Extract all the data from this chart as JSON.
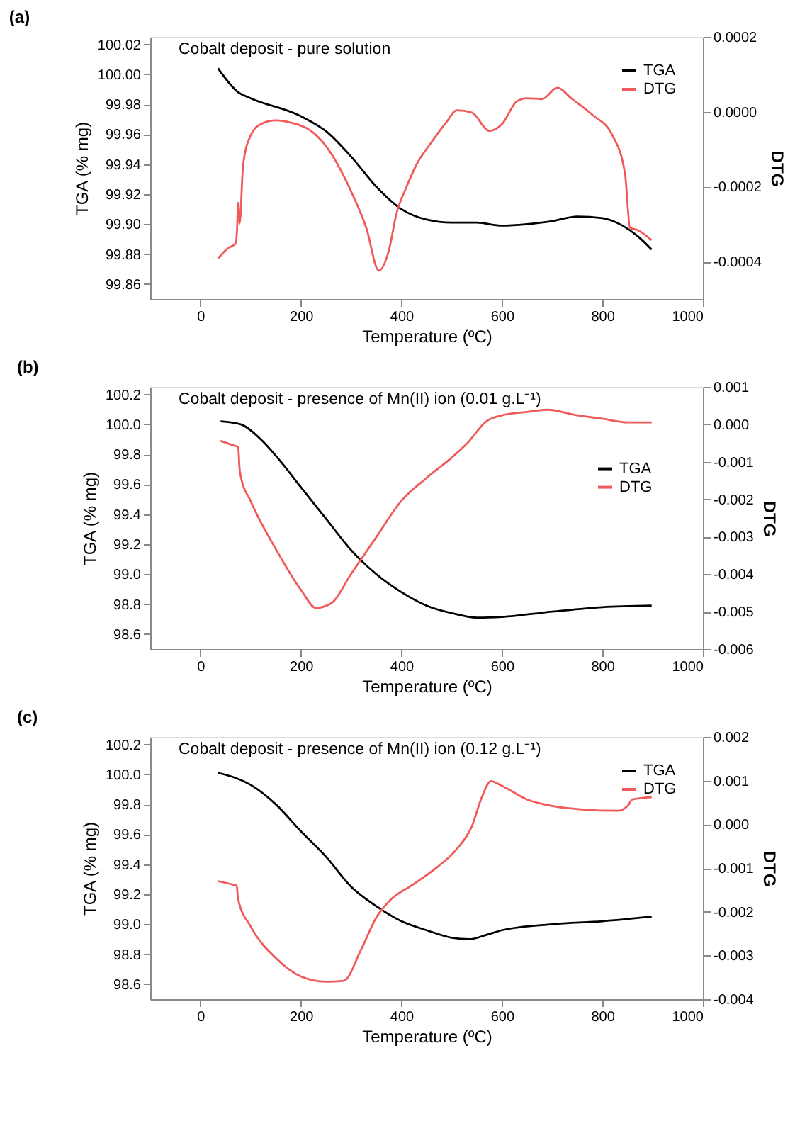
{
  "chart_data": [
    {
      "type": "line",
      "title": "(a)",
      "annotations": [
        "Cobalt deposit - pure solution"
      ],
      "xlabel": "Temperature (ºC)",
      "ylabel": "TGA (% mg)",
      "y2label": "DTG",
      "legend": "top right",
      "grid": false,
      "xlim": [
        -100,
        1000
      ],
      "xticks": [
        0,
        200,
        400,
        600,
        800,
        1000
      ],
      "ylim": [
        99.85,
        100.025
      ],
      "yticks": [
        {
          "value": 99.86,
          "label": "99.86"
        },
        {
          "value": 99.88,
          "label": "99.88"
        },
        {
          "value": 99.9,
          "label": "99.90"
        },
        {
          "value": 99.92,
          "label": "99.92"
        },
        {
          "value": 99.94,
          "label": "99.94"
        },
        {
          "value": 99.96,
          "label": "99.96"
        },
        {
          "value": 99.98,
          "label": "99.98"
        },
        {
          "value": 100.0,
          "label": "100.00"
        },
        {
          "value": 100.02,
          "label": "100.02"
        }
      ],
      "y2lim": [
        -0.0005,
        0.0002
      ],
      "y2ticks": [
        {
          "value": -0.0004,
          "label": "-0.0004"
        },
        {
          "value": -0.0002,
          "label": "-0.0002"
        },
        {
          "value": 0,
          "label": "0.0000"
        },
        {
          "value": 0.0002,
          "label": "0.0002"
        }
      ],
      "series": [
        {
          "name": "TGA",
          "color": "#000000",
          "x": [
            35,
            75,
            100,
            200,
            250,
            300,
            350,
            400,
            450,
            500,
            550,
            600,
            650,
            700,
            750,
            800,
            840,
            870,
            898
          ],
          "values": [
            100.004,
            99.988,
            99.984,
            99.972,
            99.962,
            99.945,
            99.925,
            99.91,
            99.903,
            99.901,
            99.901,
            99.899,
            99.9,
            99.902,
            99.905,
            99.904,
            99.899,
            99.892,
            99.883
          ]
        },
        {
          "name": "DTG",
          "color": "#f05a5a",
          "axis": "y2",
          "x": [
            35,
            55,
            70,
            73,
            75,
            78,
            85,
            100,
            120,
            150,
            180,
            220,
            250,
            300,
            330,
            355,
            375,
            390,
            410,
            430,
            460,
            490,
            510,
            540,
            575,
            600,
            630,
            650,
            680,
            710,
            740,
            780,
            820,
            845,
            855,
            870,
            898
          ],
          "values": [
            -0.000392,
            -0.000364,
            -0.000352,
            -0.00031,
            -0.000243,
            -0.000298,
            -0.000141,
            -6.3e-05,
            -3.3e-05,
            -2.3e-05,
            -2.9e-05,
            -5.1e-05,
            -9.2e-05,
            -0.000213,
            -0.00031,
            -0.000424,
            -0.00037,
            -0.000273,
            -0.000201,
            -0.000141,
            -8.1e-05,
            -2.7e-05,
            4e-06,
            -2e-06,
            -5.1e-05,
            -3.3e-05,
            2.8e-05,
            3.6e-05,
            3.4e-05,
            6.4e-05,
            3.4e-05,
            -8e-06,
            -6.3e-05,
            -0.000165,
            -0.00031,
            -0.000316,
            -0.000343
          ]
        }
      ]
    },
    {
      "type": "line",
      "title": "(b)",
      "annotations": [
        "Cobalt deposit - presence of Mn(II) ion (0.01 g.L⁻¹)"
      ],
      "xlabel": "Temperature (ºC)",
      "ylabel": "TGA (% mg)",
      "y2label": "DTG",
      "legend": "right",
      "grid": false,
      "xlim": [
        -100,
        1000
      ],
      "xticks": [
        0,
        200,
        400,
        600,
        800,
        1000
      ],
      "ylim": [
        98.5,
        100.25
      ],
      "yticks": [
        {
          "value": 98.6,
          "label": "98.6"
        },
        {
          "value": 98.8,
          "label": "98.8"
        },
        {
          "value": 99.0,
          "label": "99.0"
        },
        {
          "value": 99.2,
          "label": "99.2"
        },
        {
          "value": 99.4,
          "label": "99.4"
        },
        {
          "value": 99.6,
          "label": "99.6"
        },
        {
          "value": 99.8,
          "label": "99.8"
        },
        {
          "value": 100.0,
          "label": "100.0"
        },
        {
          "value": 100.2,
          "label": "100.2"
        }
      ],
      "y2lim": [
        -0.006,
        0.001
      ],
      "y2ticks": [
        {
          "value": -0.006,
          "label": "-0.006"
        },
        {
          "value": -0.005,
          "label": "-0.005"
        },
        {
          "value": -0.004,
          "label": "-0.004"
        },
        {
          "value": -0.003,
          "label": "-0.003"
        },
        {
          "value": -0.002,
          "label": "-0.002"
        },
        {
          "value": -0.001,
          "label": "-0.001"
        },
        {
          "value": 0,
          "label": "0.000"
        },
        {
          "value": 0.001,
          "label": "0.001"
        }
      ],
      "series": [
        {
          "name": "TGA",
          "color": "#000000",
          "x": [
            40,
            80,
            120,
            160,
            200,
            250,
            300,
            350,
            400,
            450,
            500,
            550,
            600,
            700,
            800,
            898
          ],
          "values": [
            100.02,
            100.0,
            99.9,
            99.75,
            99.58,
            99.37,
            99.16,
            99.0,
            98.88,
            98.79,
            98.74,
            98.71,
            98.715,
            98.75,
            98.78,
            98.79
          ]
        },
        {
          "name": "DTG",
          "color": "#f05a5a",
          "axis": "y2",
          "x": [
            40,
            70,
            75,
            78,
            80,
            100,
            150,
            200,
            230,
            260,
            300,
            350,
            400,
            450,
            500,
            530,
            570,
            600,
            650,
            690,
            750,
            800,
            850,
            898
          ],
          "values": [
            -0.00044,
            -0.00058,
            -0.0006,
            -0.0012,
            -0.00137,
            -0.00205,
            -0.00333,
            -0.00442,
            -0.0049,
            -0.00478,
            -0.00399,
            -0.00301,
            -0.00204,
            -0.00143,
            -0.00089,
            -0.00052,
            9e-05,
            0.00024,
            0.00033,
            0.00039,
            0.00024,
            0.00015,
            5e-05,
            5e-05
          ]
        }
      ]
    },
    {
      "type": "line",
      "title": "(c)",
      "annotations": [
        "Cobalt deposit - presence of Mn(II) ion (0.12 g.L⁻¹)"
      ],
      "xlabel": "Temperature (ºC)",
      "ylabel": "TGA (% mg)",
      "y2label": "DTG",
      "legend": "top right",
      "grid": false,
      "xlim": [
        -100,
        1000
      ],
      "xticks": [
        0,
        200,
        400,
        600,
        800,
        1000
      ],
      "ylim": [
        98.5,
        100.25
      ],
      "yticks": [
        {
          "value": 98.6,
          "label": "98.6"
        },
        {
          "value": 98.8,
          "label": "98.8"
        },
        {
          "value": 99.0,
          "label": "99.0"
        },
        {
          "value": 99.2,
          "label": "99.2"
        },
        {
          "value": 99.4,
          "label": "99.4"
        },
        {
          "value": 99.6,
          "label": "99.6"
        },
        {
          "value": 99.8,
          "label": "99.8"
        },
        {
          "value": 100.0,
          "label": "100.0"
        },
        {
          "value": 100.2,
          "label": "100.2"
        }
      ],
      "y2lim": [
        -0.004,
        0.002
      ],
      "y2ticks": [
        {
          "value": -0.004,
          "label": "-0.004"
        },
        {
          "value": -0.003,
          "label": "-0.003"
        },
        {
          "value": -0.002,
          "label": "-0.002"
        },
        {
          "value": -0.001,
          "label": "-0.001"
        },
        {
          "value": 0,
          "label": "0.000"
        },
        {
          "value": 0.001,
          "label": "0.001"
        },
        {
          "value": 0.002,
          "label": "0.002"
        }
      ],
      "series": [
        {
          "name": "TGA",
          "color": "#000000",
          "x": [
            35,
            100,
            150,
            200,
            250,
            300,
            350,
            400,
            450,
            500,
            535,
            570,
            600,
            700,
            800,
            898
          ],
          "values": [
            100.01,
            99.93,
            99.8,
            99.62,
            99.45,
            99.25,
            99.12,
            99.02,
            98.96,
            98.91,
            98.9,
            98.93,
            98.96,
            99.0,
            99.02,
            99.05
          ]
        },
        {
          "name": "DTG",
          "color": "#f05a5a",
          "axis": "y2",
          "x": [
            35,
            65,
            72,
            75,
            100,
            150,
            200,
            250,
            285,
            320,
            350,
            380,
            420,
            470,
            510,
            540,
            560,
            578,
            600,
            650,
            700,
            760,
            830,
            850,
            860,
            898
          ],
          "values": [
            -0.0013,
            -0.00138,
            -0.0014,
            -0.00171,
            -0.00234,
            -0.00306,
            -0.00348,
            -0.0036,
            -0.00358,
            -0.00286,
            -0.00213,
            -0.00171,
            -0.0014,
            -0.00099,
            -0.00057,
            -5e-05,
            0.00062,
            0.00099,
            0.00088,
            0.00057,
            0.00042,
            0.00034,
            0.00031,
            0.00042,
            0.00057,
            0.00062
          ]
        }
      ]
    }
  ]
}
